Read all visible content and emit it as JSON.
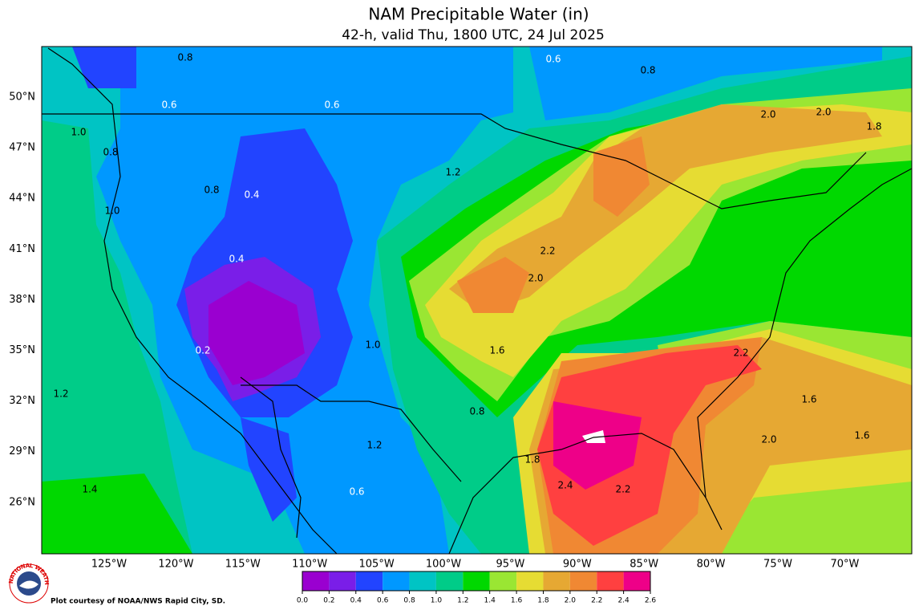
{
  "header": {
    "title": "NAM Precipitable Water (in)",
    "subtitle": "42-h, valid Thu, 1800 UTC, 24 Jul 2025"
  },
  "map": {
    "lat_labels": [
      "50°N",
      "47°N",
      "44°N",
      "41°N",
      "38°N",
      "35°N",
      "32°N",
      "29°N",
      "26°N"
    ],
    "lon_labels": [
      "125°W",
      "120°W",
      "115°W",
      "110°W",
      "105°W",
      "100°W",
      "95°W",
      "90°W",
      "85°W",
      "80°W",
      "75°W",
      "70°W"
    ],
    "contour_labels": [
      "0.8",
      "0.6",
      "0.8",
      "0.6",
      "0.6",
      "1.0",
      "0.8",
      "0.4",
      "0.8",
      "1.2",
      "1.0",
      "0.2",
      "0.4",
      "1.2",
      "2.2",
      "2.0",
      "2.0",
      "2.0",
      "1.8",
      "2.2",
      "1.6",
      "1.6",
      "2.0",
      "1.8",
      "2.4",
      "2.2",
      "1.4",
      "0.6",
      "0.8",
      "1.2",
      "1.0",
      "1.6"
    ]
  },
  "colorbar": {
    "colors": [
      "#9a00d0",
      "#7a1ee8",
      "#2244ff",
      "#0098ff",
      "#00c4c4",
      "#00cc88",
      "#00d800",
      "#9ae633",
      "#e6dc33",
      "#e6a833",
      "#f08833",
      "#ff4040",
      "#ee0088"
    ],
    "ticks": [
      {
        "value": 0,
        "label": "0.0"
      },
      {
        "value": 0.2,
        "label": "0.2"
      },
      {
        "value": 0.4,
        "label": "0.4"
      },
      {
        "value": 0.6,
        "label": "0.6"
      },
      {
        "value": 0.8,
        "label": "0.8"
      },
      {
        "value": 1,
        "label": "1.0"
      },
      {
        "value": 1.2,
        "label": "1.2"
      },
      {
        "value": 1.4,
        "label": "1.4"
      },
      {
        "value": 1.6,
        "label": "1.6"
      },
      {
        "value": 1.8,
        "label": "1.8"
      },
      {
        "value": 2,
        "label": "2.0"
      },
      {
        "value": 2.2,
        "label": "2.2"
      },
      {
        "value": 2.4,
        "label": "2.4"
      },
      {
        "value": 2.6,
        "label": "2.6"
      }
    ]
  },
  "footer": {
    "credit": "Plot courtesy of NOAA/NWS Rapid City, SD.",
    "logo_text": "NATIONAL WEATHER SERVICE"
  }
}
